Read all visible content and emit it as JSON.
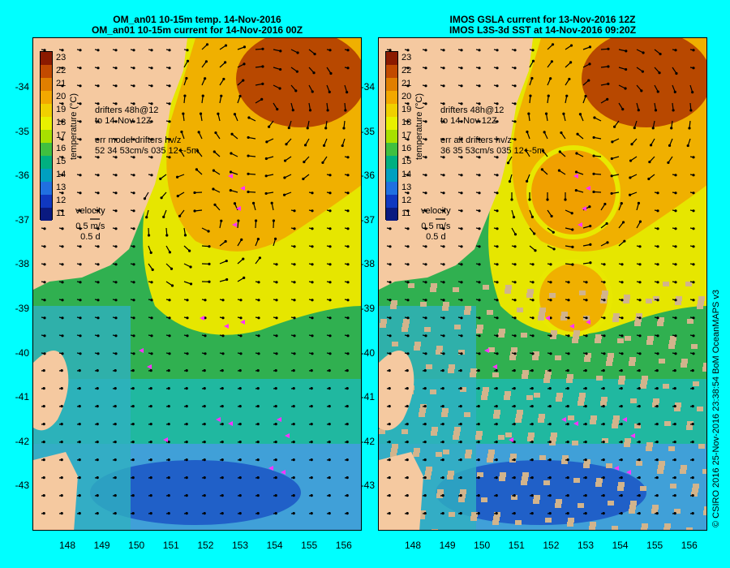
{
  "panels": [
    {
      "title_line1": "OM_an01 10-15m temp. 14-Nov-2016",
      "title_line2": "OM_an01 10-15m current for 14-Nov-2016 00Z",
      "drifters_text_1": "drifters 48h@12",
      "drifters_text_2": "to 14-Nov 12Z",
      "err_text_1": "err model drifters hv/z",
      "err_text_2": "52 34 53cm/s 035 12+-5m",
      "velocity_label": "velocity",
      "velocity_scale": "0.5 m/s",
      "velocity_time": "0.5 d"
    },
    {
      "title_line1": "IMOS GSLA current for 13-Nov-2016 12Z",
      "title_line2": "IMOS L3S-3d SST at 14-Nov-2016 09:20Z",
      "drifters_text_1": "drifters 48h@12",
      "drifters_text_2": "to 14-Nov 12Z",
      "err_text_1": "err alt drifters hv/z",
      "err_text_2": "36 35 53cm/s 035 12+-5m",
      "velocity_label": "velocity",
      "velocity_scale": "0.5 m/s",
      "velocity_time": "0.5 d"
    }
  ],
  "colorbar": {
    "title": "temperature (°C)",
    "labels": [
      "23",
      "22",
      "21",
      "20",
      "19",
      "18",
      "17",
      "16",
      "15",
      "14",
      "13",
      "12",
      "11"
    ],
    "colors": [
      "#8b1a00",
      "#c24a00",
      "#e07f00",
      "#f2a800",
      "#f0d000",
      "#e8f000",
      "#a8e000",
      "#40c040",
      "#00b080",
      "#00a0c0",
      "#2070e0",
      "#1038c0",
      "#0a1a80"
    ]
  },
  "map_axes": {
    "lat_labels": [
      "-34",
      "-35",
      "-36",
      "-37",
      "-38",
      "-39",
      "-40",
      "-41",
      "-42",
      "-43"
    ],
    "lon_labels": [
      "148",
      "149",
      "150",
      "151",
      "152",
      "153",
      "154",
      "155",
      "156"
    ]
  },
  "credit": "© CSIRO 2016  25-Nov-2016 23:38:54 BoM OceanMAPS v3",
  "colors": {
    "land": "#f5c9a0",
    "background": "#00ffff",
    "drifter": "#ff33ff",
    "cloud": "#d2b48c"
  }
}
